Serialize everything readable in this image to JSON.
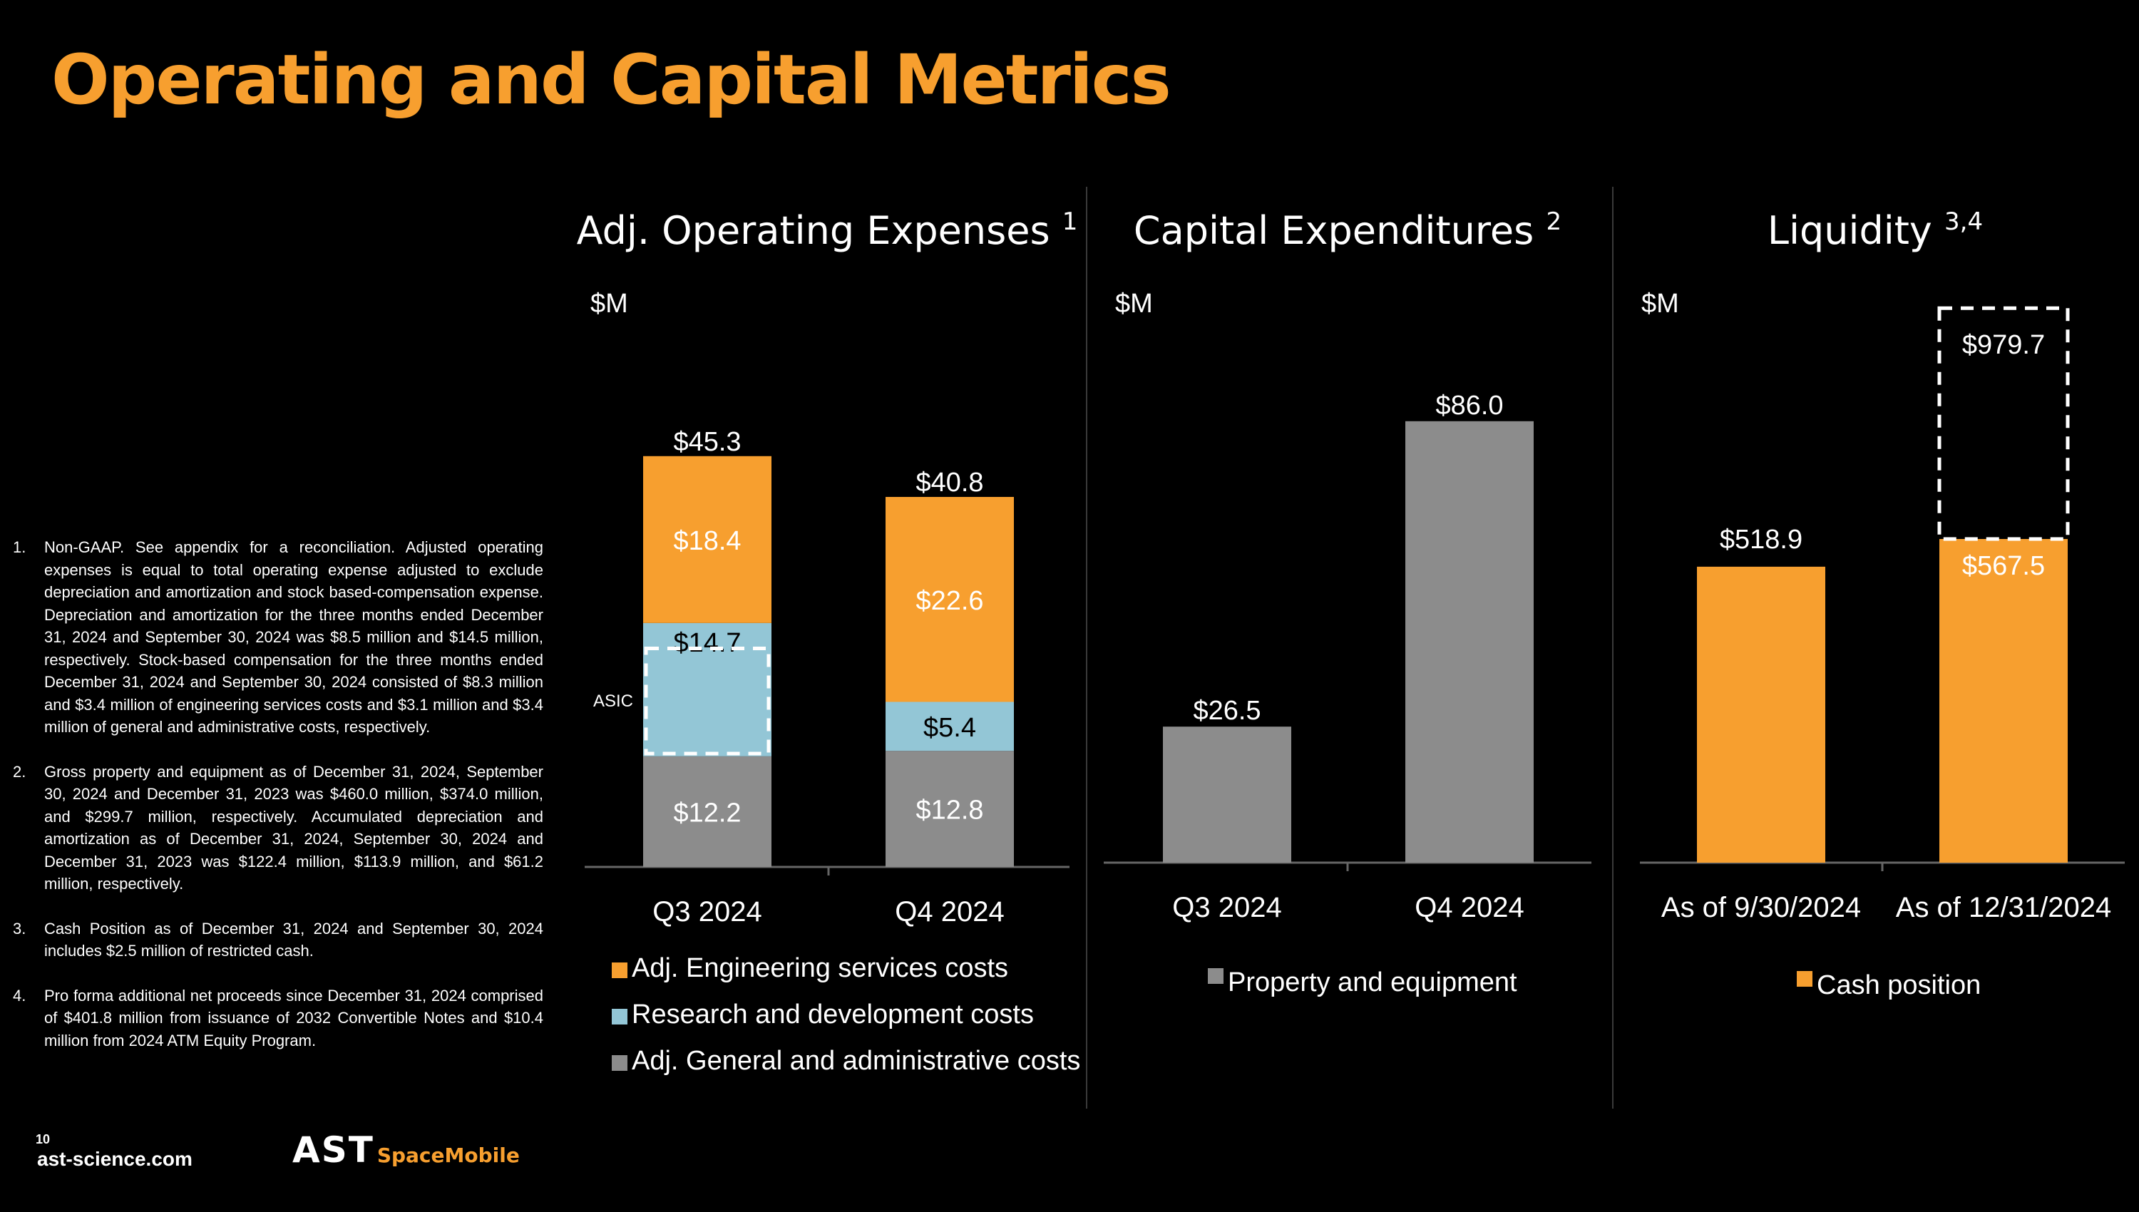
{
  "page_title": "Operating and Capital Metrics",
  "footnotes": [
    {
      "num": "1.",
      "text": "Non-GAAP. See appendix for a reconciliation. Adjusted operating expenses is equal to total operating expense adjusted to exclude depreciation and amortization and stock based-compensation expense. Depreciation and amortization for the three months ended December 31, 2024 and September 30, 2024 was $8.5 million and $14.5 million, respectively. Stock-based compensation for the three months ended December 31, 2024 and September 30, 2024 consisted of $8.3 million and $3.4 million of engineering services costs and $3.1 million and $3.4 million of general and administrative costs, respectively."
    },
    {
      "num": "2.",
      "text": "Gross property and equipment as of December 31, 2024, September 30, 2024 and December 31, 2023 was $460.0 million, $374.0 million, and $299.7 million, respectively. Accumulated depreciation and amortization as of December 31, 2024, September 30, 2024 and December 31, 2023 was $122.4 million, $113.9 million, and $61.2 million, respectively."
    },
    {
      "num": "3.",
      "text": "Cash Position as of December 31, 2024 and September 30, 2024 includes $2.5 million of restricted cash."
    },
    {
      "num": "4.",
      "text": "Pro forma additional net proceeds since December 31, 2024 comprised of $401.8 million from issuance of 2032 Convertible Notes and $10.4 million from 2024 ATM Equity Program."
    }
  ],
  "footer": {
    "page_number": "10",
    "website": "ast-science.com",
    "logo_main": "AST",
    "logo_sub": "SpaceMobile"
  },
  "colors": {
    "orange": "#f79f2f",
    "light_blue": "#93c6d6",
    "gray": "#8c8c8c",
    "background": "#000000",
    "text": "#ffffff"
  },
  "chart_data": [
    {
      "type": "bar",
      "stacked": true,
      "title": "Adj. Operating Expenses",
      "title_superscript": "1",
      "unit_label": "$M",
      "categories": [
        "Q3 2024",
        "Q4 2024"
      ],
      "series": [
        {
          "name": "Adj. General and administrative costs",
          "color": "#8c8c8c",
          "values": [
            12.2,
            12.8
          ],
          "labels": [
            "$12.2",
            "$12.8"
          ]
        },
        {
          "name": "Research and development costs",
          "color": "#93c6d6",
          "values": [
            14.7,
            5.4
          ],
          "labels": [
            "$14.7",
            "$5.4"
          ]
        },
        {
          "name": "Adj. Engineering services costs",
          "color": "#f79f2f",
          "values": [
            18.4,
            22.6
          ],
          "labels": [
            "$18.4",
            "$22.6"
          ]
        }
      ],
      "totals": [
        "$45.3",
        "$40.8"
      ],
      "ylim": [
        0,
        60
      ],
      "annotation": {
        "text": "ASIC",
        "category": "Q3 2024",
        "series": "Research and development costs"
      },
      "legend_order": [
        "Adj. Engineering services costs",
        "Research and development costs",
        "Adj. General and administrative costs"
      ]
    },
    {
      "type": "bar",
      "title": "Capital Expenditures",
      "title_superscript": "2",
      "unit_label": "$M",
      "categories": [
        "Q3 2024",
        "Q4 2024"
      ],
      "series": [
        {
          "name": "Property and equipment",
          "color": "#8c8c8c",
          "values": [
            26.5,
            86.0
          ],
          "labels": [
            "$26.5",
            "$86.0"
          ]
        }
      ],
      "ylim": [
        0,
        120
      ]
    },
    {
      "type": "bar",
      "title": "Liquidity",
      "title_superscript": "3,4",
      "unit_label": "$M",
      "categories": [
        "As of 9/30/2024",
        "As of 12/31/2024"
      ],
      "series": [
        {
          "name": "Cash position",
          "color": "#f79f2f",
          "values": [
            518.9,
            567.5
          ],
          "labels": [
            "$518.9",
            "$567.5"
          ]
        }
      ],
      "pro_forma": {
        "category": "As of 12/31/2024",
        "total": 979.7,
        "label": "$979.7"
      },
      "ylim": [
        0,
        1100
      ]
    }
  ]
}
